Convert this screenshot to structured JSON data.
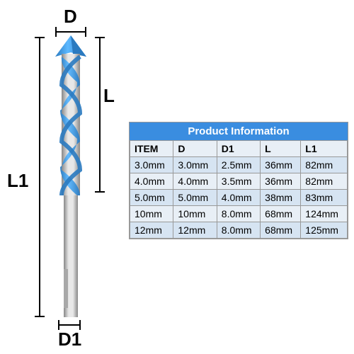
{
  "diagram": {
    "labels": {
      "D": "D",
      "L": "L",
      "L1": "L1",
      "D1": "D1"
    },
    "drill_colors": {
      "tip": "#3a9ae8",
      "flute_blue": "#4aa8f0",
      "flute_dark": "#2a7ac0",
      "shaft_light": "#d8d8d8",
      "shaft_mid": "#b0b0b0",
      "shaft_dark": "#888888"
    },
    "line_color": "#000000"
  },
  "table": {
    "title": "Product Information",
    "header_bg": "#3a8de0",
    "header_fg": "#ffffff",
    "row_odd_bg": "#e8eff6",
    "row_even_bg": "#d6e4f2",
    "columns": [
      "ITEM",
      "D",
      "D1",
      "L",
      "L1"
    ],
    "rows": [
      [
        "3.0mm",
        "3.0mm",
        "2.5mm",
        "36mm",
        "82mm"
      ],
      [
        "4.0mm",
        "4.0mm",
        "3.5mm",
        "36mm",
        "82mm"
      ],
      [
        "5.0mm",
        "5.0mm",
        "4.0mm",
        "38mm",
        "83mm"
      ],
      [
        "10mm",
        "10mm",
        "8.0mm",
        "68mm",
        "124mm"
      ],
      [
        "12mm",
        "12mm",
        "8.0mm",
        "68mm",
        "125mm"
      ]
    ]
  }
}
